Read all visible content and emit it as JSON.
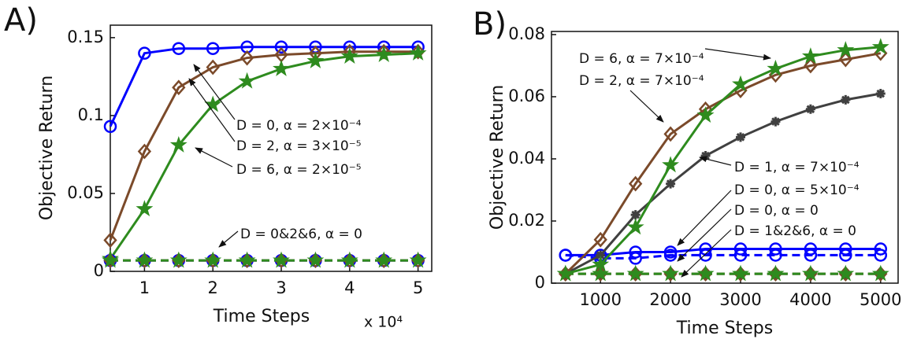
{
  "chart_data": [
    {
      "type": "line",
      "panel_label": "A)",
      "xlabel": "Time Steps",
      "ylabel": "Objective Return",
      "x_multiplier": "x 10⁴",
      "x": [
        0.5,
        1,
        1.5,
        2,
        2.5,
        3,
        3.5,
        4,
        4.5,
        5
      ],
      "xlim": [
        0.5,
        5.2
      ],
      "xticks": [
        1,
        2,
        3,
        4,
        5
      ],
      "ylim": [
        0,
        0.158
      ],
      "yticks": [
        0,
        0.05,
        0.1,
        0.15
      ],
      "series": [
        {
          "color": "#0000ff",
          "marker": "circle",
          "linestyle": "solid",
          "values": [
            0.093,
            0.14,
            0.143,
            0.143,
            0.144,
            0.144,
            0.144,
            0.144,
            0.144,
            0.144
          ]
        },
        {
          "color": "#7b4a2a",
          "marker": "diamond",
          "linestyle": "solid",
          "values": [
            0.02,
            0.077,
            0.118,
            0.131,
            0.137,
            0.139,
            0.14,
            0.141,
            0.141,
            0.141
          ]
        },
        {
          "color": "#2e8b1e",
          "marker": "star",
          "linestyle": "solid",
          "values": [
            0.008,
            0.04,
            0.081,
            0.107,
            0.122,
            0.13,
            0.135,
            0.138,
            0.139,
            0.14
          ]
        },
        {
          "color": "#0000ff",
          "marker": "circle",
          "linestyle": "dashed",
          "values": [
            0.007,
            0.007,
            0.007,
            0.007,
            0.007,
            0.007,
            0.007,
            0.007,
            0.007,
            0.007
          ]
        },
        {
          "color": "#7b4a2a",
          "marker": "diamond",
          "linestyle": "dashed",
          "values": [
            0.007,
            0.007,
            0.007,
            0.007,
            0.007,
            0.007,
            0.007,
            0.007,
            0.007,
            0.007
          ]
        },
        {
          "color": "#2e8b1e",
          "marker": "star",
          "linestyle": "dashed",
          "values": [
            0.007,
            0.007,
            0.007,
            0.007,
            0.007,
            0.007,
            0.007,
            0.007,
            0.007,
            0.007
          ]
        }
      ],
      "annotations": [
        "D = 0,  α = 2×10⁻⁴",
        "D = 2,  α = 3×10⁻⁵",
        "D = 6,  α = 2×10⁻⁵",
        "D = 0&2&6,  α = 0"
      ]
    },
    {
      "type": "line",
      "panel_label": "B)",
      "xlabel": "Time Steps",
      "ylabel": "Objective Return",
      "x": [
        500,
        1000,
        1500,
        2000,
        2500,
        3000,
        3500,
        4000,
        4500,
        5000
      ],
      "xlim": [
        300,
        5250
      ],
      "xticks": [
        1000,
        2000,
        3000,
        4000,
        5000
      ],
      "ylim": [
        0,
        0.081
      ],
      "yticks": [
        0,
        0.02,
        0.04,
        0.06,
        0.08
      ],
      "series": [
        {
          "color": "#0000ff",
          "marker": "circle",
          "linestyle": "solid",
          "values": [
            0.009,
            0.009,
            0.01,
            0.01,
            0.011,
            0.011,
            0.011,
            0.011,
            0.011,
            0.011
          ]
        },
        {
          "color": "#0000ff",
          "marker": "circle",
          "linestyle": "dashed",
          "values": [
            0.009,
            0.008,
            0.008,
            0.009,
            0.009,
            0.009,
            0.009,
            0.009,
            0.009,
            0.009
          ]
        },
        {
          "color": "#404040",
          "marker": "asterisk",
          "linestyle": "solid",
          "values": [
            0.003,
            0.009,
            0.022,
            0.032,
            0.041,
            0.047,
            0.052,
            0.056,
            0.059,
            0.061
          ]
        },
        {
          "color": "#7b4a2a",
          "marker": "diamond",
          "linestyle": "solid",
          "values": [
            0.003,
            0.014,
            0.032,
            0.048,
            0.056,
            0.062,
            0.067,
            0.07,
            0.072,
            0.074
          ]
        },
        {
          "color": "#2e8b1e",
          "marker": "star",
          "linestyle": "solid",
          "values": [
            0.003,
            0.006,
            0.018,
            0.038,
            0.054,
            0.064,
            0.069,
            0.073,
            0.075,
            0.076
          ]
        },
        {
          "color": "#404040",
          "marker": "asterisk",
          "linestyle": "dashed",
          "values": [
            0.003,
            0.003,
            0.003,
            0.003,
            0.003,
            0.003,
            0.003,
            0.003,
            0.003,
            0.003
          ]
        },
        {
          "color": "#7b4a2a",
          "marker": "diamond",
          "linestyle": "dashed",
          "values": [
            0.003,
            0.003,
            0.003,
            0.003,
            0.003,
            0.003,
            0.003,
            0.003,
            0.003,
            0.003
          ]
        },
        {
          "color": "#2e8b1e",
          "marker": "star",
          "linestyle": "dashed",
          "values": [
            0.003,
            0.003,
            0.003,
            0.003,
            0.003,
            0.003,
            0.003,
            0.003,
            0.003,
            0.003
          ]
        }
      ],
      "annotations": [
        "D = 6,  α = 7×10⁻⁴",
        "D = 2,  α = 7×10⁻⁴",
        "D = 1,  α = 7×10⁻⁴",
        "D = 0,  α = 5×10⁻⁴",
        "D = 0,  α = 0",
        "D = 1&2&6,  α = 0"
      ]
    }
  ]
}
